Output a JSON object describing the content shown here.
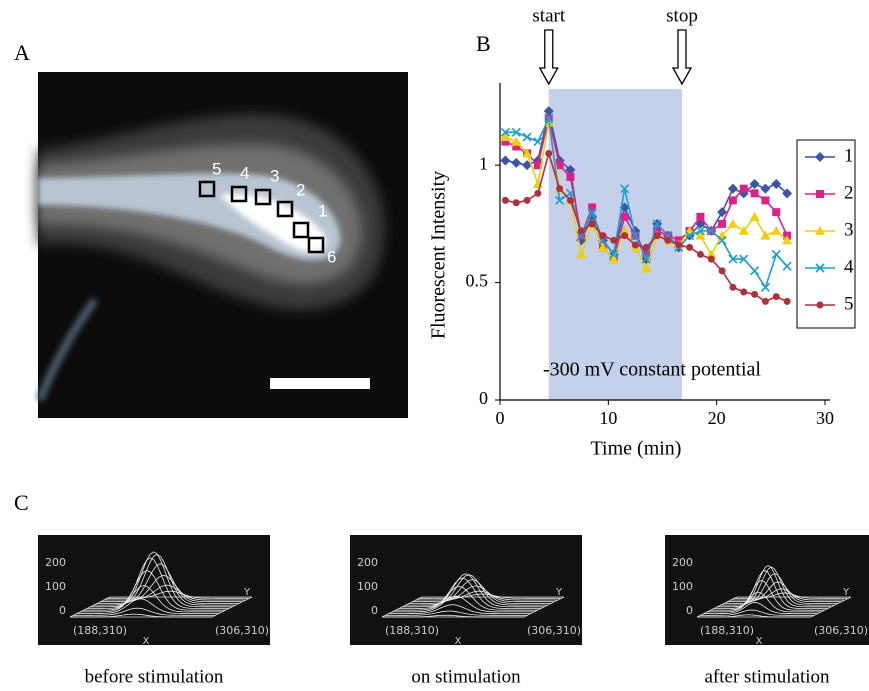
{
  "panel_labels": [
    "A",
    "B",
    "C"
  ],
  "image": {
    "roi_labels": [
      "5",
      "4",
      "3",
      "2",
      "1",
      "6"
    ]
  },
  "chart_data": {
    "type": "line",
    "x_label": "Time (min)",
    "y_label": "Fluorescent Intensity",
    "x": [
      0.5,
      1.5,
      2.5,
      3.5,
      4.5,
      5.5,
      6.5,
      7.5,
      8.5,
      9.5,
      10.5,
      11.5,
      12.5,
      13.5,
      14.5,
      15.5,
      16.5,
      17.5,
      18.5,
      19.5,
      20.5,
      21.5,
      22.5,
      23.5,
      24.5,
      25.5,
      26.5
    ],
    "series": [
      {
        "name": "1",
        "color": "#3a56a8",
        "marker": "diamond",
        "values": [
          1.02,
          1.01,
          1.0,
          1.02,
          1.23,
          1.02,
          0.98,
          0.68,
          0.78,
          0.68,
          0.62,
          0.82,
          0.72,
          0.6,
          0.75,
          0.7,
          0.65,
          0.7,
          0.75,
          0.72,
          0.8,
          0.9,
          0.88,
          0.92,
          0.9,
          0.92,
          0.88
        ]
      },
      {
        "name": "2",
        "color": "#e0208a",
        "marker": "square",
        "values": [
          1.1,
          1.08,
          1.05,
          1.0,
          1.2,
          1.0,
          0.95,
          0.7,
          0.82,
          0.65,
          0.6,
          0.78,
          0.7,
          0.62,
          0.72,
          0.7,
          0.68,
          0.72,
          0.78,
          0.72,
          0.75,
          0.85,
          0.9,
          0.88,
          0.85,
          0.8,
          0.7
        ]
      },
      {
        "name": "3",
        "color": "#f0d000",
        "marker": "triangle",
        "values": [
          1.12,
          1.1,
          1.05,
          0.92,
          1.18,
          0.9,
          0.85,
          0.62,
          0.75,
          0.65,
          0.6,
          0.72,
          0.65,
          0.56,
          0.7,
          0.68,
          0.66,
          0.72,
          0.7,
          0.62,
          0.7,
          0.75,
          0.72,
          0.78,
          0.7,
          0.72,
          0.68
        ]
      },
      {
        "name": "4",
        "color": "#1a9fd0",
        "marker": "x",
        "values": [
          1.14,
          1.14,
          1.12,
          1.1,
          1.2,
          0.85,
          0.88,
          0.7,
          0.8,
          0.68,
          0.62,
          0.9,
          0.7,
          0.6,
          0.75,
          0.7,
          0.65,
          0.7,
          0.72,
          0.72,
          0.68,
          0.6,
          0.6,
          0.55,
          0.48,
          0.62,
          0.57
        ]
      },
      {
        "name": "5",
        "color": "#b03040",
        "marker": "circle",
        "values": [
          0.85,
          0.84,
          0.85,
          0.88,
          1.05,
          0.9,
          0.85,
          0.72,
          0.75,
          0.7,
          0.68,
          0.7,
          0.66,
          0.65,
          0.7,
          0.68,
          0.66,
          0.65,
          0.62,
          0.6,
          0.55,
          0.48,
          0.46,
          0.45,
          0.42,
          0.44,
          0.42
        ]
      }
    ],
    "xlim": [
      0,
      30
    ],
    "xticks": [
      0,
      10,
      20,
      30
    ],
    "ylim": [
      0,
      1.35
    ],
    "yticks": [
      0,
      0.5,
      1
    ],
    "stimulation": {
      "start": 4.5,
      "stop": 16.8,
      "start_label": "start",
      "stop_label": "stop",
      "label": "-300 mV constant potential",
      "color": "#c5d0ea"
    },
    "legend": "right"
  },
  "surface_plots": [
    {
      "caption": "before stimulation",
      "zticks": [
        200,
        100,
        0
      ],
      "x_start": "(188,310)",
      "x_end": "(306,310)",
      "x_axis": "X",
      "y_axis": "Y"
    },
    {
      "caption": "on stimulation",
      "zticks": [
        200,
        100,
        0
      ],
      "x_start": "(188,310)",
      "x_end": "(306,310)",
      "x_axis": "X",
      "y_axis": "Y"
    },
    {
      "caption": "after stimulation",
      "zticks": [
        200,
        100,
        0
      ],
      "x_start": "(188,310)",
      "x_end": "(306,310)",
      "x_axis": "X",
      "y_axis": "Y"
    }
  ]
}
